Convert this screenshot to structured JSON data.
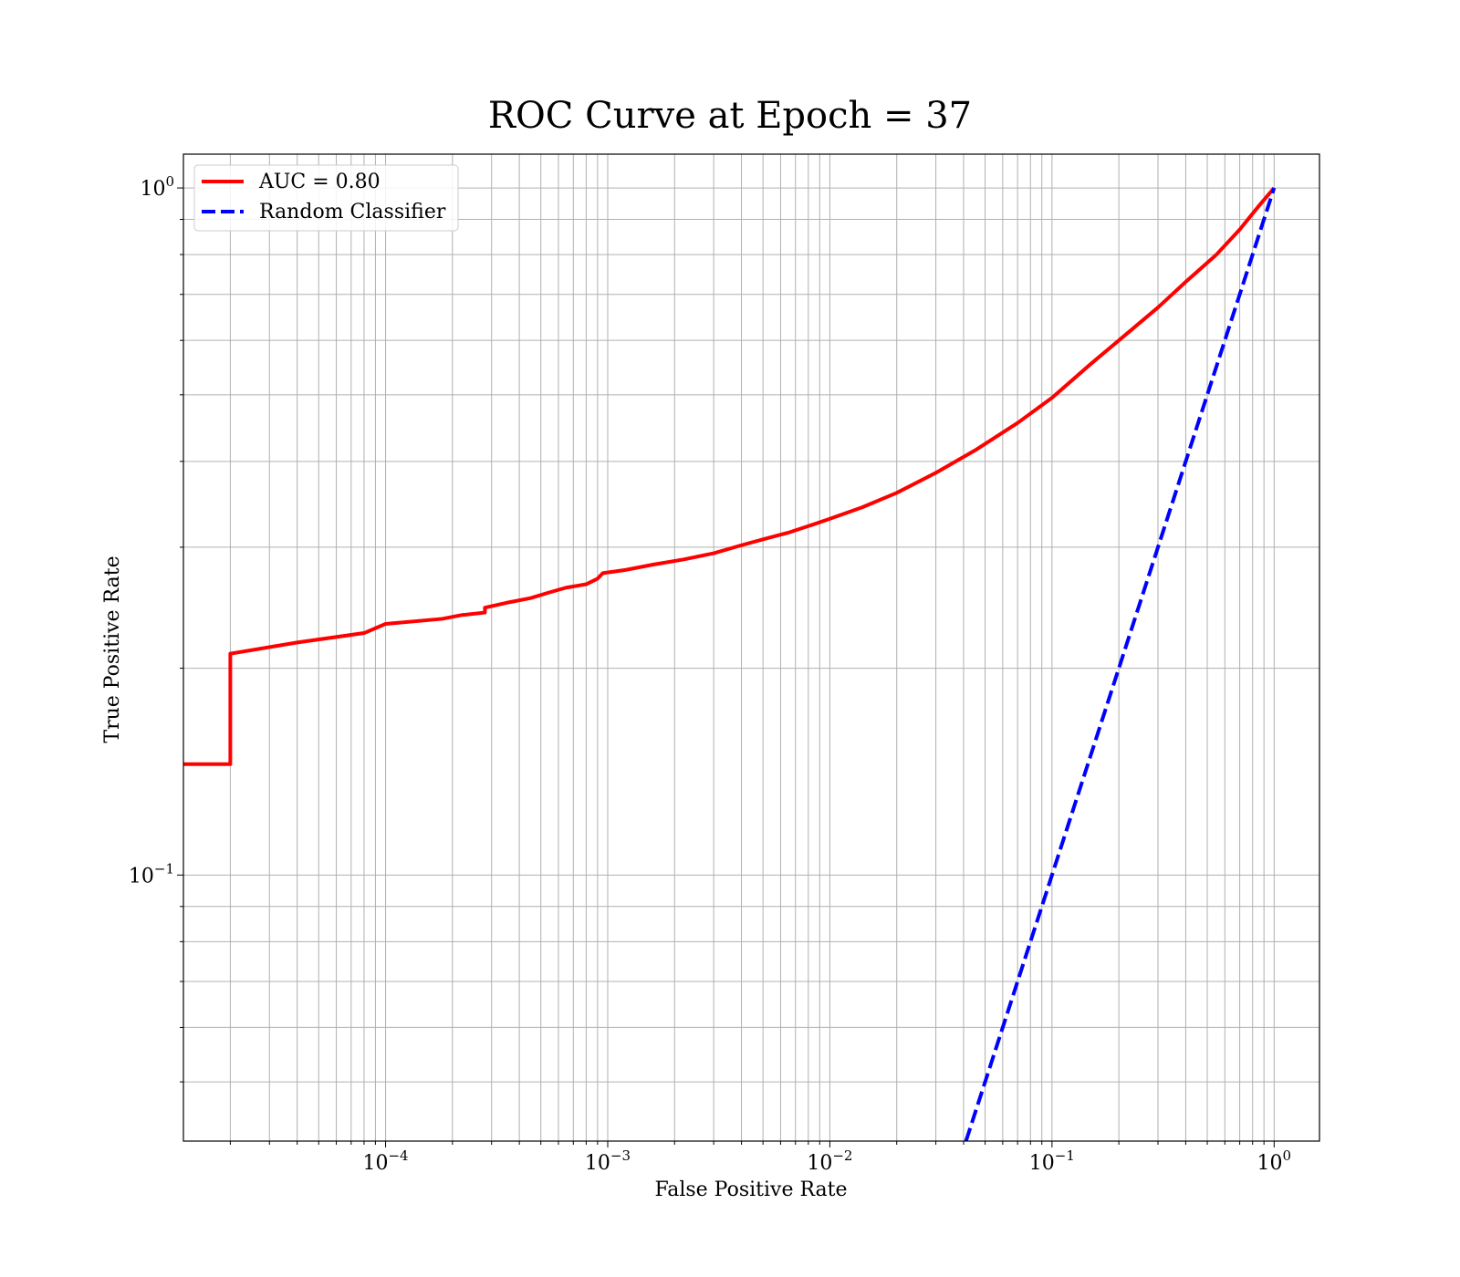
{
  "chart_data": {
    "type": "line",
    "title": "ROC Curve at Epoch = 37",
    "xlabel": "False Positive Rate",
    "ylabel": "True Positive Rate",
    "xscale": "log",
    "yscale": "log",
    "xlim": [
      1.23e-05,
      1.6
    ],
    "ylim": [
      0.041,
      1.12
    ],
    "grid": true,
    "grid_color": "#b0b0b0",
    "legend_position": "top-left",
    "x_ticks": [
      {
        "value": 0.0001,
        "base": "10",
        "exp": "−4"
      },
      {
        "value": 0.001,
        "base": "10",
        "exp": "−3"
      },
      {
        "value": 0.01,
        "base": "10",
        "exp": "−2"
      },
      {
        "value": 0.1,
        "base": "10",
        "exp": "−1"
      },
      {
        "value": 1,
        "base": "10",
        "exp": "0"
      }
    ],
    "y_ticks": [
      {
        "value": 0.1,
        "base": "10",
        "exp": "−1"
      },
      {
        "value": 1,
        "base": "10",
        "exp": "0"
      }
    ],
    "series": [
      {
        "name": "AUC = 0.80",
        "color": "#ff0000",
        "style": "solid",
        "x": [
          1.23e-05,
          2e-05,
          2e-05,
          4e-05,
          8e-05,
          0.0001,
          0.00018,
          0.00022,
          0.00028,
          0.00028,
          0.00035,
          0.00045,
          0.00055,
          0.00065,
          0.0008,
          0.0009,
          0.00095,
          0.0012,
          0.0016,
          0.0022,
          0.003,
          0.004,
          0.005,
          0.0065,
          0.008,
          0.01,
          0.014,
          0.02,
          0.03,
          0.045,
          0.07,
          0.1,
          0.15,
          0.2,
          0.3,
          0.4,
          0.55,
          0.7,
          0.85,
          1.0
        ],
        "y": [
          0.145,
          0.145,
          0.21,
          0.218,
          0.225,
          0.232,
          0.236,
          0.239,
          0.241,
          0.245,
          0.249,
          0.253,
          0.258,
          0.262,
          0.265,
          0.27,
          0.275,
          0.278,
          0.283,
          0.288,
          0.294,
          0.302,
          0.308,
          0.315,
          0.322,
          0.33,
          0.343,
          0.36,
          0.385,
          0.415,
          0.455,
          0.495,
          0.555,
          0.6,
          0.67,
          0.73,
          0.8,
          0.87,
          0.94,
          1.0
        ]
      },
      {
        "name": "Random Classifier",
        "color": "#0000ff",
        "style": "dashed",
        "x": [
          0.041,
          1.0
        ],
        "y": [
          0.041,
          1.0
        ]
      }
    ]
  }
}
